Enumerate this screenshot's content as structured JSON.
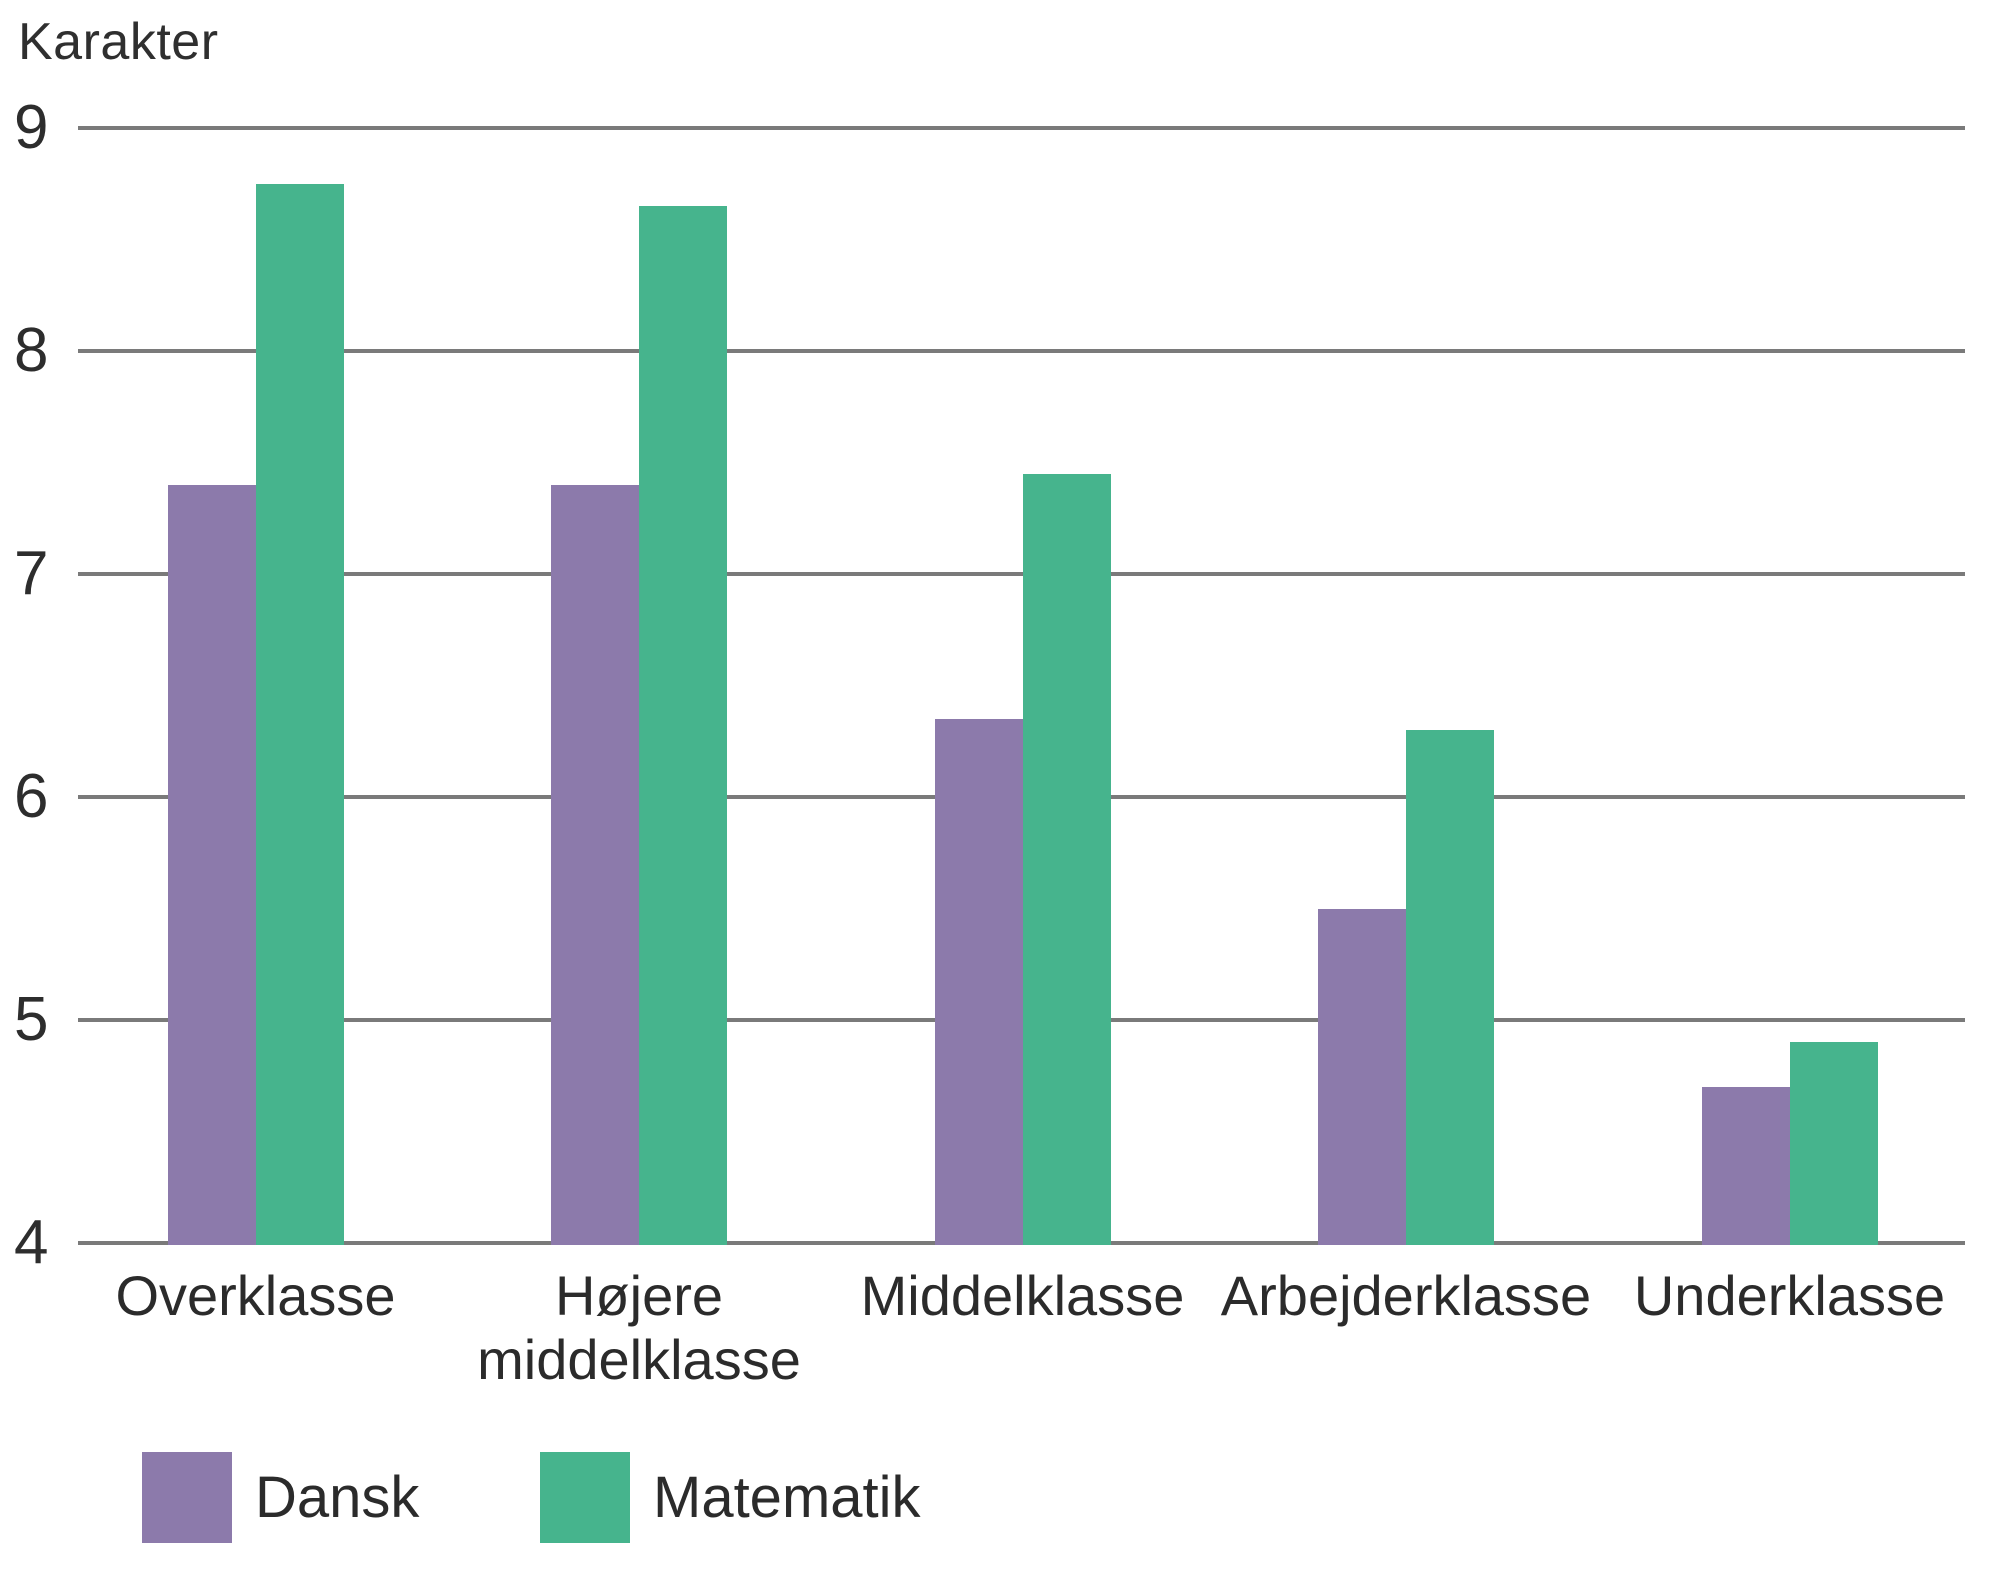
{
  "chart_data": {
    "type": "bar",
    "title": "",
    "ylabel": "Karakter",
    "xlabel": "",
    "categories": [
      "Overklasse",
      "Højere middelklasse",
      "Middelklasse",
      "Arbejderklasse",
      "Underklasse"
    ],
    "series": [
      {
        "name": "Dansk",
        "color": "#8c7aab",
        "values": [
          7.4,
          7.4,
          6.35,
          5.5,
          4.7
        ]
      },
      {
        "name": "Matematik",
        "color": "#46b48d",
        "values": [
          8.75,
          8.65,
          7.45,
          6.3,
          4.9
        ]
      }
    ],
    "ylim": [
      4,
      9
    ],
    "yticks": [
      9,
      8,
      7,
      6,
      5,
      4
    ],
    "grid": true,
    "legend_position": "bottom-left",
    "colors": {
      "gridline": "#7a7a7a",
      "text": "#2b2b2b"
    }
  }
}
